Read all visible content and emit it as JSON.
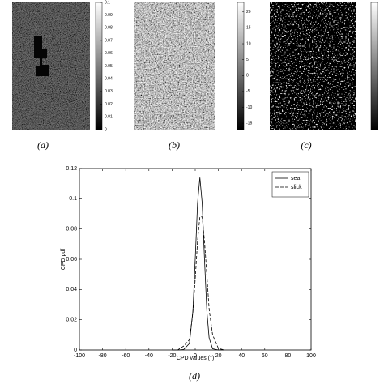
{
  "panels": [
    {
      "caption": "(a)",
      "colorbar": {
        "lim": [
          0,
          0.1
        ],
        "ticks": [
          0,
          0.01,
          0.02,
          0.03,
          0.04,
          0.05,
          0.06,
          0.07,
          0.08,
          0.09,
          0.1
        ]
      }
    },
    {
      "caption": "(b)",
      "colorbar": {
        "lim": [
          -17,
          23
        ],
        "ticks": [
          -15,
          -10,
          -5,
          0,
          5,
          10,
          15,
          20
        ]
      }
    },
    {
      "caption": "(c)"
    }
  ],
  "chart_data": {
    "type": "line",
    "caption": "(d)",
    "x_label": "CPD values (°)",
    "y_label": "CPD pdf",
    "x": [
      -20,
      -15,
      -10,
      -5,
      -2,
      0,
      2,
      4,
      6,
      8,
      10,
      12,
      15,
      20,
      25
    ],
    "series": [
      {
        "name": "sea",
        "color": "#000000",
        "dash": "solid",
        "values": [
          0,
          0,
          0.0003,
          0.0043,
          0.026,
          0.06,
          0.097,
          0.114,
          0.097,
          0.06,
          0.026,
          0.008,
          0.0008,
          0,
          0
        ]
      },
      {
        "name": "slick",
        "color": "#000000",
        "dash": "dashed",
        "values": [
          0,
          0.0001,
          0.0026,
          0.0068,
          0.025,
          0.047,
          0.072,
          0.088,
          0.088,
          0.072,
          0.05,
          0.027,
          0.01,
          0.001,
          0
        ]
      }
    ],
    "xlim": [
      -100,
      100
    ],
    "xticks": [
      -100,
      -80,
      -60,
      -40,
      -20,
      0,
      20,
      40,
      60,
      80,
      100
    ],
    "ylim": [
      0,
      0.12
    ],
    "yticks": [
      0,
      0.02,
      0.04,
      0.06,
      0.08,
      0.1,
      0.12
    ],
    "legend": "top-right"
  }
}
